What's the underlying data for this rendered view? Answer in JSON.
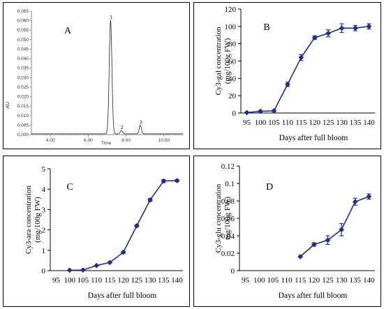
{
  "chart_data": [
    {
      "panel": "A",
      "type": "line",
      "ylabel": "AU",
      "xlabel": "Time",
      "xlim": [
        3.0,
        11.0
      ],
      "ylim": [
        0.0,
        0.065
      ],
      "xticks": [
        "4.00",
        "6.00",
        "8.00",
        "10.00"
      ],
      "yticks": [
        "0.000",
        "0.005",
        "0.010",
        "0.015",
        "0.020",
        "0.025",
        "0.030",
        "0.035",
        "0.040",
        "0.045",
        "0.050",
        "0.055",
        "0.060",
        "0.065"
      ],
      "peaks": [
        {
          "label": "1",
          "rt": 7.18,
          "height": 0.0598
        },
        {
          "label": "2",
          "rt": 7.75,
          "height": 0.0018
        },
        {
          "label": "3",
          "rt": 8.75,
          "height": 0.0045
        }
      ]
    },
    {
      "panel": "B",
      "type": "line",
      "ylabel": "Cy3-gal concentration\n(mg/100g FW)",
      "xlabel": "Days after full bloom",
      "ylim": [
        0,
        120
      ],
      "yticks": [
        "0",
        "20",
        "40",
        "60",
        "80",
        "100",
        "120"
      ],
      "categories": [
        "95",
        "100",
        "105",
        "110",
        "115",
        "120",
        "125",
        "130",
        "135",
        "140"
      ],
      "x": [
        95,
        100,
        105,
        110,
        115,
        120,
        125,
        130,
        135,
        140
      ],
      "values": [
        0.5,
        2,
        2.5,
        33,
        64,
        87,
        92,
        98,
        98,
        100
      ],
      "errors": [
        0.5,
        1,
        1,
        2.5,
        3.5,
        2,
        4,
        5,
        3,
        3
      ]
    },
    {
      "panel": "C",
      "type": "line",
      "ylabel": "Cy3-ara concentration\n(mg/100g FW)",
      "xlabel": "Days after full bloom",
      "ylim": [
        0,
        5
      ],
      "yticks": [
        "0",
        "1",
        "2",
        "3",
        "4",
        "5"
      ],
      "categories": [
        "95",
        "100",
        "105",
        "110",
        "115",
        "120",
        "125",
        "130",
        "135",
        "140"
      ],
      "x": [
        100,
        105,
        110,
        115,
        120,
        125,
        130,
        135,
        140
      ],
      "values": [
        0.02,
        0.03,
        0.25,
        0.4,
        0.9,
        2.2,
        3.47,
        4.4,
        4.42
      ],
      "errors": [
        0,
        0,
        0,
        0,
        0.05,
        0.05,
        0.07,
        0.07,
        0.05
      ]
    },
    {
      "panel": "D",
      "type": "line",
      "ylabel": "Cy3-glu concentration\nmg/100g FW)",
      "xlabel": "Days after full bloom",
      "ylim": [
        0,
        0.12
      ],
      "yticks": [
        "0",
        "0.02",
        "0.04",
        "0.06",
        "0.08",
        "0.1",
        "0.12"
      ],
      "categories": [
        "95",
        "100",
        "105",
        "110",
        "115",
        "120",
        "125",
        "130",
        "135",
        "140"
      ],
      "x": [
        115,
        120,
        125,
        130,
        135,
        140
      ],
      "values": [
        0.016,
        0.03,
        0.035,
        0.047,
        0.079,
        0.085
      ],
      "errors": [
        0,
        0.002,
        0.005,
        0.007,
        0.004,
        0.003
      ]
    }
  ]
}
